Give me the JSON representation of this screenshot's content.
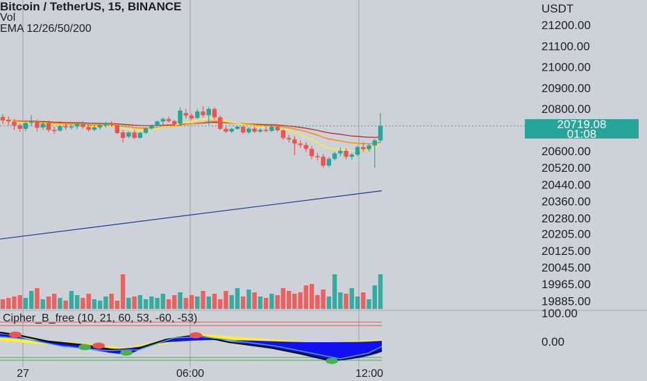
{
  "header": {
    "symbol_line": "Bitcoin / TetherUS, 15, BINANCE",
    "vol_label": "Vol",
    "ema_label": "EMA 12/26/50/200"
  },
  "indicator": {
    "label": "Cipher_B_free (10, 21, 60, 53, -60, -53)",
    "axis": [
      "100.00",
      "0.00"
    ]
  },
  "price_axis": {
    "unit": "USDT",
    "labels": [
      "21200.00",
      "21100.00",
      "21000.00",
      "20900.00",
      "20800.00",
      "20600.00",
      "20520.00",
      "20440.00",
      "20360.00",
      "20280.00",
      "20205.00",
      "20125.00",
      "20045.00",
      "19965.00",
      "19885.00"
    ]
  },
  "last_price": {
    "value": "20719.08",
    "countdown": "01:08"
  },
  "time_axis": {
    "labels": [
      "27",
      "06:00",
      "12:00"
    ]
  },
  "colors": {
    "up": "#26a69a",
    "down": "#ef5350",
    "ema12": "#ffeb3b",
    "ema26": "#ff8c00",
    "ema50": "#b71c1c",
    "ema200": "#1a3a8f",
    "cipher_fill": "#1010f0",
    "cipher_band": "#ffeb3b"
  },
  "chart_data": {
    "type": "candlestick",
    "title": "Bitcoin / TetherUS, 15, BINANCE",
    "ylim": [
      19865,
      21285
    ],
    "candles": [
      [
        20762,
        20775,
        20728,
        20745
      ],
      [
        20748,
        20765,
        20720,
        20740
      ],
      [
        20740,
        20752,
        20700,
        20720
      ],
      [
        20722,
        20730,
        20690,
        20705
      ],
      [
        20705,
        20742,
        20695,
        20733
      ],
      [
        20733,
        20770,
        20718,
        20740
      ],
      [
        20742,
        20750,
        20690,
        20710
      ],
      [
        20712,
        20740,
        20700,
        20730
      ],
      [
        20732,
        20745,
        20690,
        20700
      ],
      [
        20700,
        20715,
        20682,
        20697
      ],
      [
        20697,
        20725,
        20692,
        20718
      ],
      [
        20718,
        20730,
        20700,
        20712
      ],
      [
        20712,
        20726,
        20702,
        20716
      ],
      [
        20716,
        20733,
        20705,
        20728
      ],
      [
        20728,
        20742,
        20706,
        20714
      ],
      [
        20714,
        20728,
        20692,
        20701
      ],
      [
        20701,
        20718,
        20695,
        20712
      ],
      [
        20712,
        20730,
        20702,
        20722
      ],
      [
        20722,
        20740,
        20710,
        20732
      ],
      [
        20732,
        20742,
        20715,
        20724
      ],
      [
        20724,
        20730,
        20680,
        20685
      ],
      [
        20688,
        20700,
        20640,
        20662
      ],
      [
        20668,
        20692,
        20660,
        20688
      ],
      [
        20688,
        20700,
        20655,
        20662
      ],
      [
        20662,
        20692,
        20658,
        20686
      ],
      [
        20686,
        20712,
        20680,
        20707
      ],
      [
        20707,
        20725,
        20700,
        20720
      ],
      [
        20720,
        20745,
        20716,
        20740
      ],
      [
        20740,
        20760,
        20725,
        20752
      ],
      [
        20752,
        20762,
        20735,
        20742
      ],
      [
        20742,
        20748,
        20722,
        20727
      ],
      [
        20730,
        20808,
        20718,
        20792
      ],
      [
        20780,
        20800,
        20755,
        20768
      ],
      [
        20768,
        20778,
        20748,
        20755
      ],
      [
        20757,
        20800,
        20752,
        20788
      ],
      [
        20788,
        20812,
        20760,
        20770
      ],
      [
        20770,
        20810,
        20725,
        20800
      ],
      [
        20800,
        20808,
        20750,
        20760
      ],
      [
        20760,
        20768,
        20698,
        20705
      ],
      [
        20705,
        20715,
        20685,
        20692
      ],
      [
        20692,
        20710,
        20685,
        20705
      ],
      [
        20705,
        20720,
        20700,
        20715
      ],
      [
        20715,
        20720,
        20680,
        20688
      ],
      [
        20688,
        20712,
        20682,
        20706
      ],
      [
        20706,
        20715,
        20685,
        20692
      ],
      [
        20692,
        20708,
        20686,
        20700
      ],
      [
        20700,
        20716,
        20688,
        20695
      ],
      [
        20695,
        20722,
        20690,
        20716
      ],
      [
        20716,
        20725,
        20690,
        20698
      ],
      [
        20698,
        20706,
        20652,
        20662
      ],
      [
        20662,
        20676,
        20640,
        20655
      ],
      [
        20655,
        20670,
        20580,
        20635
      ],
      [
        20635,
        20650,
        20615,
        20628
      ],
      [
        20628,
        20640,
        20595,
        20610
      ],
      [
        20610,
        20622,
        20560,
        20575
      ],
      [
        20575,
        20590,
        20555,
        20572
      ],
      [
        20572,
        20585,
        20520,
        20530
      ],
      [
        20530,
        20570,
        20522,
        20562
      ],
      [
        20562,
        20595,
        20555,
        20588
      ],
      [
        20588,
        20615,
        20575,
        20600
      ],
      [
        20600,
        20612,
        20560,
        20572
      ],
      [
        20572,
        20590,
        20558,
        20582
      ],
      [
        20582,
        20625,
        20575,
        20618
      ],
      [
        20618,
        20640,
        20596,
        20608
      ],
      [
        20608,
        20632,
        20598,
        20626
      ],
      [
        20626,
        20657,
        20520,
        20650
      ],
      [
        20650,
        20780,
        20640,
        20719
      ]
    ],
    "volume_profile": "bars shown, no numeric scale printed",
    "series": [
      {
        "name": "EMA 200",
        "values_start": 20180,
        "values_end": 20410
      }
    ]
  }
}
